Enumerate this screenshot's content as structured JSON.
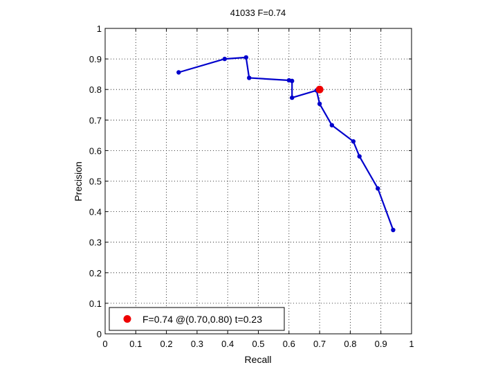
{
  "chart_data": {
    "type": "line",
    "title": "41033 F=0.74",
    "xlabel": "Recall",
    "ylabel": "Precision",
    "xlim": [
      0,
      1
    ],
    "ylim": [
      0,
      1
    ],
    "x_ticks": [
      0,
      0.1,
      0.2,
      0.3,
      0.4,
      0.5,
      0.6,
      0.7,
      0.8,
      0.9,
      1
    ],
    "y_ticks": [
      0,
      0.1,
      0.2,
      0.3,
      0.4,
      0.5,
      0.6,
      0.7,
      0.8,
      0.9,
      1
    ],
    "x_tick_labels": [
      "0",
      "0.1",
      "0.2",
      "0.3",
      "0.4",
      "0.5",
      "0.6",
      "0.7",
      "0.8",
      "0.9",
      "1"
    ],
    "y_tick_labels": [
      "0",
      "0.1",
      "0.2",
      "0.3",
      "0.4",
      "0.5",
      "0.6",
      "0.7",
      "0.8",
      "0.9",
      "1"
    ],
    "grid": true,
    "legend_position": "bottom-left",
    "series": [
      {
        "type": "line",
        "color": "#0000cc",
        "marker": "dot",
        "x": [
          0.24,
          0.39,
          0.46,
          0.47,
          0.6,
          0.61,
          0.61,
          0.69,
          0.7,
          0.74,
          0.81,
          0.83,
          0.89,
          0.94
        ],
        "y": [
          0.856,
          0.9,
          0.905,
          0.838,
          0.83,
          0.828,
          0.773,
          0.797,
          0.753,
          0.683,
          0.63,
          0.581,
          0.476,
          0.34
        ]
      },
      {
        "type": "scatter",
        "name": "F=0.74 @(0.70,0.80) t=0.23",
        "color": "#ee0000",
        "marker": "dot",
        "x": [
          0.7
        ],
        "y": [
          0.8
        ]
      }
    ],
    "legend": {
      "entries": [
        {
          "label": "F=0.74 @(0.70,0.80) t=0.23",
          "color": "#ee0000",
          "marker": "dot"
        }
      ]
    }
  }
}
